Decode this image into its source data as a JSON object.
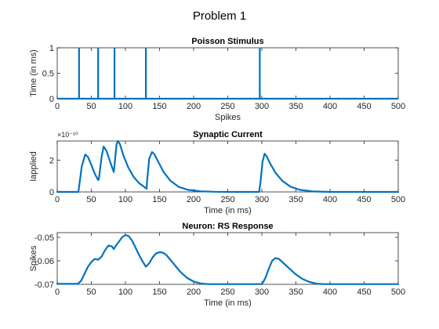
{
  "figure": {
    "title": "Problem 1"
  },
  "colors": {
    "series": "#0072BD",
    "axis": "#262626",
    "background": "#ffffff"
  },
  "chart_data": [
    {
      "type": "line",
      "title": "Poisson Stimulus",
      "xlabel": "Spikes",
      "ylabel": "Time (in ms)",
      "xlim": [
        0,
        500
      ],
      "ylim": [
        0,
        1
      ],
      "xticks": [
        0,
        50,
        100,
        150,
        200,
        250,
        300,
        350,
        400,
        450,
        500
      ],
      "yticks": [
        0,
        0.5,
        1
      ],
      "grid": false,
      "series": [
        {
          "mode": "impulses",
          "x": [
            32,
            60,
            84,
            130,
            297
          ],
          "values": [
            1,
            1,
            1,
            1,
            1
          ]
        }
      ]
    },
    {
      "type": "line",
      "title": "Synaptic Current",
      "xlabel": "Time (in ms)",
      "ylabel": "Iapplied",
      "exponent_label": "×10⁻¹⁰",
      "xlim": [
        0,
        500
      ],
      "ylim": [
        0,
        3.2
      ],
      "xticks": [
        0,
        50,
        100,
        150,
        200,
        250,
        300,
        350,
        400,
        450,
        500
      ],
      "yticks": [
        0,
        2
      ],
      "grid": false,
      "series": [
        {
          "x": [
            0,
            31,
            36,
            41,
            45,
            50,
            55,
            60,
            61,
            65,
            68,
            72,
            76,
            80,
            83,
            84,
            87,
            89,
            92,
            97,
            104,
            112,
            120,
            128,
            131,
            132,
            135,
            139,
            142,
            148,
            156,
            166,
            178,
            192,
            210,
            230,
            260,
            296,
            298,
            301,
            304,
            307,
            312,
            320,
            330,
            342,
            356,
            375,
            400,
            500
          ],
          "values": [
            0,
            0,
            1.6,
            2.35,
            2.2,
            1.7,
            1.15,
            0.75,
            0.8,
            2.2,
            2.85,
            2.6,
            2.1,
            1.6,
            1.25,
            1.7,
            3.0,
            3.2,
            3.0,
            2.3,
            1.55,
            0.95,
            0.55,
            0.3,
            0.2,
            0.8,
            2.1,
            2.5,
            2.4,
            1.9,
            1.25,
            0.7,
            0.32,
            0.13,
            0.04,
            0.01,
            0,
            0,
            0.6,
            1.9,
            2.4,
            2.25,
            1.8,
            1.2,
            0.7,
            0.33,
            0.13,
            0.03,
            0,
            0
          ]
        }
      ]
    },
    {
      "type": "line",
      "title": "Neuron: RS Response",
      "xlabel": "Time (in ms)",
      "ylabel": "Spikes",
      "xlim": [
        0,
        500
      ],
      "ylim": [
        -0.07,
        -0.048
      ],
      "xticks": [
        0,
        50,
        100,
        150,
        200,
        250,
        300,
        350,
        400,
        450,
        500
      ],
      "yticks": [
        -0.07,
        -0.06,
        -0.05
      ],
      "grid": false,
      "series": [
        {
          "x": [
            0,
            30,
            35,
            40,
            45,
            50,
            55,
            60,
            65,
            70,
            75,
            80,
            83,
            86,
            90,
            95,
            100,
            105,
            110,
            115,
            120,
            125,
            130,
            135,
            140,
            145,
            150,
            155,
            160,
            170,
            180,
            190,
            200,
            210,
            220,
            300,
            305,
            310,
            315,
            320,
            325,
            330,
            340,
            350,
            360,
            370,
            380,
            390,
            400,
            500
          ],
          "values": [
            -0.0698,
            -0.0698,
            -0.0685,
            -0.0655,
            -0.0625,
            -0.0605,
            -0.0592,
            -0.0595,
            -0.0582,
            -0.0555,
            -0.0535,
            -0.0538,
            -0.055,
            -0.0535,
            -0.052,
            -0.05,
            -0.049,
            -0.0495,
            -0.0515,
            -0.0545,
            -0.0575,
            -0.0602,
            -0.0625,
            -0.061,
            -0.0585,
            -0.0568,
            -0.0563,
            -0.0565,
            -0.0575,
            -0.061,
            -0.0645,
            -0.0672,
            -0.0688,
            -0.0696,
            -0.0699,
            -0.0699,
            -0.0675,
            -0.0635,
            -0.06,
            -0.0588,
            -0.0592,
            -0.0605,
            -0.0632,
            -0.0658,
            -0.0678,
            -0.069,
            -0.0697,
            -0.0699,
            -0.0699,
            -0.0699
          ]
        }
      ]
    }
  ]
}
